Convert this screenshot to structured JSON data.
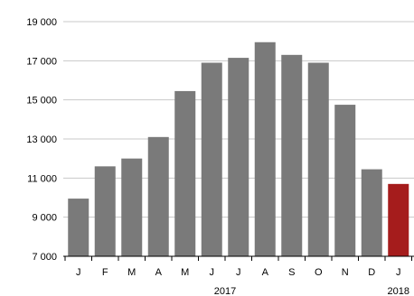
{
  "chart_data": {
    "type": "bar",
    "title": "",
    "xlabel": "",
    "ylabel": "",
    "ylim": [
      7000,
      19000
    ],
    "yticks": [
      7000,
      9000,
      11000,
      13000,
      15000,
      17000,
      19000
    ],
    "ytick_labels": [
      "7 000",
      "9 000",
      "11 000",
      "13 000",
      "15 000",
      "17 000",
      "19 000"
    ],
    "grid": true,
    "legend": "none",
    "categories": [
      "J",
      "F",
      "M",
      "A",
      "M",
      "J",
      "J",
      "A",
      "S",
      "O",
      "N",
      "D",
      "J"
    ],
    "values": [
      9950,
      11600,
      12000,
      13100,
      15450,
      16900,
      17150,
      17950,
      17300,
      16900,
      14750,
      11450,
      10700
    ],
    "group_labels": [
      {
        "label": "2017",
        "from_index": 0,
        "to_index": 11
      },
      {
        "label": "2018",
        "from_index": 12,
        "to_index": 12
      }
    ],
    "colors": {
      "bar": "#7a7a7a",
      "highlight": "#a51c1c",
      "grid": "#c8c8c8",
      "axis": "#000000"
    },
    "highlight_index": 12
  }
}
